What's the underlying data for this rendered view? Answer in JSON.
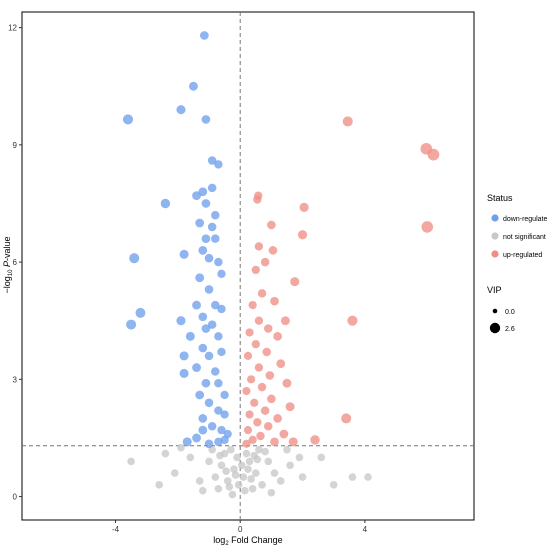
{
  "chart_data": {
    "type": "scatter",
    "xlabel": {
      "main": "log",
      "sub": "2",
      "rest": " Fold Change"
    },
    "ylabel": {
      "pre": "−log",
      "sub": "10",
      "mid": " ",
      "italic": "P",
      "rest": "-value"
    },
    "xlim": [
      -7,
      7.5
    ],
    "ylim": [
      -0.6,
      12.4
    ],
    "x_ticks": [
      -4,
      0,
      4
    ],
    "y_ticks": [
      0,
      3,
      6,
      9,
      12
    ],
    "threshold_lines": {
      "vertical_x": 0,
      "horizontal_y": 1.3
    },
    "grid": false,
    "legend": {
      "position": "right",
      "status_title": "Status",
      "status_items": [
        {
          "label": "down-regulated",
          "color": "#6fa0ec"
        },
        {
          "label": "not significant",
          "color": "#c8c8c8"
        },
        {
          "label": "up-regulated",
          "color": "#f08e86"
        }
      ],
      "vip_title": "VIP",
      "vip_items": [
        "0.0",
        "2.6"
      ]
    },
    "colors": {
      "down": "#6fa0ec",
      "ns": "#c8c8c8",
      "up": "#f08e86"
    },
    "series": [
      {
        "name": "down-regulated",
        "points": [
          [
            -1.15,
            11.8
          ],
          [
            -1.5,
            10.5
          ],
          [
            -1.9,
            9.9
          ],
          [
            -3.6,
            9.65
          ],
          [
            -1.1,
            9.65
          ],
          [
            -0.9,
            8.6
          ],
          [
            -0.7,
            8.5
          ],
          [
            -2.4,
            7.5
          ],
          [
            -1.2,
            7.8
          ],
          [
            -1.4,
            7.7
          ],
          [
            -0.9,
            7.9
          ],
          [
            -1.1,
            7.5
          ],
          [
            -0.8,
            7.2
          ],
          [
            -1.3,
            7.0
          ],
          [
            -0.9,
            6.9
          ],
          [
            -1.1,
            6.6
          ],
          [
            -0.8,
            6.6
          ],
          [
            -1.2,
            6.3
          ],
          [
            -1.8,
            6.2
          ],
          [
            -1.0,
            6.1
          ],
          [
            -3.4,
            6.1
          ],
          [
            -0.7,
            6.0
          ],
          [
            -1.3,
            5.6
          ],
          [
            -0.6,
            5.7
          ],
          [
            -1.0,
            5.3
          ],
          [
            -3.2,
            4.7
          ],
          [
            -3.5,
            4.4
          ],
          [
            -1.4,
            4.9
          ],
          [
            -0.8,
            4.9
          ],
          [
            -1.2,
            4.6
          ],
          [
            -1.9,
            4.5
          ],
          [
            -0.6,
            4.8
          ],
          [
            -1.1,
            4.3
          ],
          [
            -0.9,
            4.4
          ],
          [
            -1.6,
            4.1
          ],
          [
            -0.7,
            4.1
          ],
          [
            -1.2,
            3.8
          ],
          [
            -1.0,
            3.6
          ],
          [
            -1.8,
            3.6
          ],
          [
            -0.6,
            3.7
          ],
          [
            -1.4,
            3.3
          ],
          [
            -0.8,
            3.2
          ],
          [
            -1.8,
            3.15
          ],
          [
            -1.1,
            2.9
          ],
          [
            -0.7,
            2.9
          ],
          [
            -1.3,
            2.6
          ],
          [
            -0.5,
            2.6
          ],
          [
            -1.0,
            2.4
          ],
          [
            -0.7,
            2.2
          ],
          [
            -1.2,
            2.0
          ],
          [
            -0.5,
            2.1
          ],
          [
            -0.9,
            1.8
          ],
          [
            -0.6,
            1.7
          ],
          [
            -1.2,
            1.7
          ],
          [
            -0.4,
            1.6
          ],
          [
            -1.4,
            1.5
          ],
          [
            -1.7,
            1.4
          ],
          [
            -0.7,
            1.4
          ],
          [
            -1.0,
            1.35
          ],
          [
            -0.5,
            1.45
          ]
        ]
      },
      {
        "name": "not significant",
        "points": [
          [
            -0.05,
            0.3
          ],
          [
            0.1,
            0.5
          ],
          [
            -0.2,
            0.7
          ],
          [
            0.3,
            0.9
          ],
          [
            -0.4,
            0.4
          ],
          [
            0.5,
            0.6
          ],
          [
            -0.6,
            0.8
          ],
          [
            0.2,
            1.1
          ],
          [
            -0.1,
            1.0
          ],
          [
            0.7,
            0.3
          ],
          [
            -0.8,
            0.5
          ],
          [
            0.9,
            0.9
          ],
          [
            -0.3,
            1.2
          ],
          [
            0.4,
            0.2
          ],
          [
            -0.5,
            1.1
          ],
          [
            1.1,
            0.6
          ],
          [
            -1.0,
            0.9
          ],
          [
            0.6,
            1.2
          ],
          [
            -0.7,
            0.2
          ],
          [
            1.3,
            0.4
          ],
          [
            -1.3,
            0.4
          ],
          [
            0.15,
            0.15
          ],
          [
            -0.25,
            0.05
          ],
          [
            0.05,
            0.8
          ],
          [
            -0.15,
            0.55
          ],
          [
            1.6,
            0.8
          ],
          [
            -1.6,
            1.0
          ],
          [
            2.0,
            0.5
          ],
          [
            -2.1,
            0.6
          ],
          [
            2.6,
            1.0
          ],
          [
            -2.6,
            0.3
          ],
          [
            3.0,
            0.3
          ],
          [
            3.6,
            0.5
          ],
          [
            4.1,
            0.5
          ],
          [
            -3.5,
            0.9
          ],
          [
            -2.4,
            1.1
          ],
          [
            0.8,
            1.15
          ],
          [
            -0.9,
            1.2
          ],
          [
            1.5,
            1.2
          ],
          [
            -1.9,
            1.25
          ],
          [
            0.35,
            0.45
          ],
          [
            -0.45,
            0.65
          ],
          [
            0.55,
            0.95
          ],
          [
            -0.65,
            1.05
          ],
          [
            0.25,
            0.7
          ],
          [
            -0.35,
            0.25
          ],
          [
            0.45,
            1.05
          ],
          [
            1.9,
            1.0
          ],
          [
            -1.2,
            0.15
          ],
          [
            1.0,
            0.1
          ]
        ]
      },
      {
        "name": "up-regulated",
        "points": [
          [
            5.97,
            8.9
          ],
          [
            6.2,
            8.75
          ],
          [
            3.45,
            9.6
          ],
          [
            6.0,
            6.9
          ],
          [
            2.05,
            7.4
          ],
          [
            2.0,
            6.7
          ],
          [
            0.55,
            7.6
          ],
          [
            0.58,
            7.7
          ],
          [
            1.0,
            6.95
          ],
          [
            0.6,
            6.4
          ],
          [
            1.05,
            6.3
          ],
          [
            0.8,
            6.0
          ],
          [
            0.5,
            5.8
          ],
          [
            1.75,
            5.5
          ],
          [
            0.7,
            5.2
          ],
          [
            1.1,
            5.0
          ],
          [
            0.4,
            4.9
          ],
          [
            1.45,
            4.5
          ],
          [
            3.6,
            4.5
          ],
          [
            0.6,
            4.5
          ],
          [
            0.9,
            4.3
          ],
          [
            0.3,
            4.2
          ],
          [
            1.2,
            4.1
          ],
          [
            0.5,
            3.9
          ],
          [
            0.85,
            3.7
          ],
          [
            0.25,
            3.6
          ],
          [
            1.3,
            3.4
          ],
          [
            0.6,
            3.3
          ],
          [
            0.95,
            3.1
          ],
          [
            0.35,
            3.0
          ],
          [
            1.5,
            2.9
          ],
          [
            0.7,
            2.8
          ],
          [
            0.2,
            2.7
          ],
          [
            1.0,
            2.5
          ],
          [
            0.45,
            2.4
          ],
          [
            1.6,
            2.3
          ],
          [
            0.8,
            2.2
          ],
          [
            0.3,
            2.1
          ],
          [
            1.2,
            2.0
          ],
          [
            3.4,
            2.0
          ],
          [
            0.55,
            1.9
          ],
          [
            0.9,
            1.8
          ],
          [
            0.25,
            1.7
          ],
          [
            1.4,
            1.6
          ],
          [
            0.65,
            1.55
          ],
          [
            0.4,
            1.45
          ],
          [
            1.1,
            1.4
          ],
          [
            2.4,
            1.45
          ],
          [
            0.2,
            1.35
          ],
          [
            1.7,
            1.4
          ]
        ]
      }
    ]
  }
}
